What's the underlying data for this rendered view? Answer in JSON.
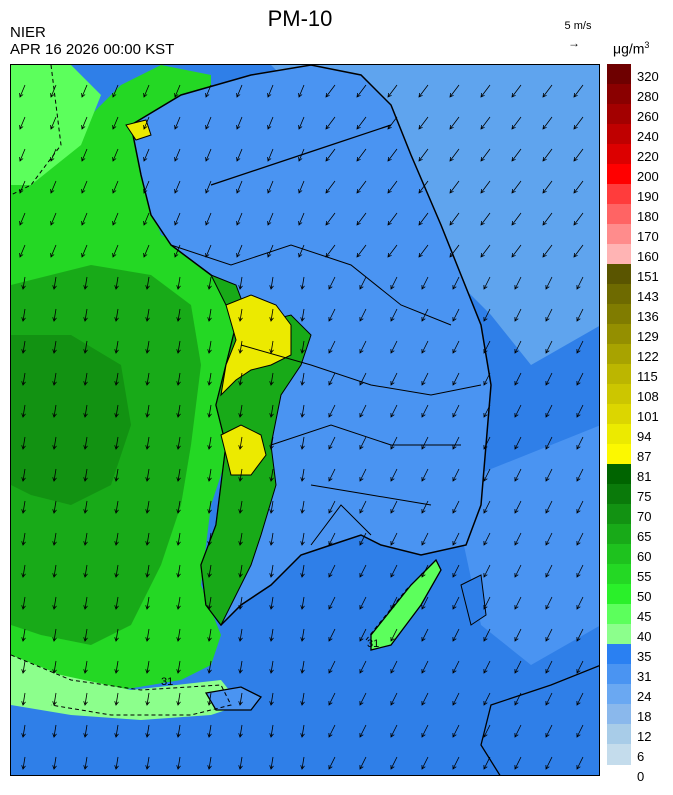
{
  "header": {
    "title": "PM-10",
    "organization": "NIER",
    "timestamp": "APR 16 2026 00:00 KST",
    "wind_reference": "5 m/s",
    "unit_base": "μg/m",
    "unit_exp": "3"
  },
  "map": {
    "contour_labels": [
      "31",
      "31"
    ]
  },
  "legend": {
    "labels": [
      "320",
      "280",
      "260",
      "240",
      "220",
      "200",
      "190",
      "180",
      "170",
      "160",
      "151",
      "143",
      "136",
      "129",
      "122",
      "115",
      "108",
      "101",
      "94",
      "87",
      "81",
      "75",
      "70",
      "65",
      "60",
      "55",
      "50",
      "45",
      "40",
      "35",
      "31",
      "24",
      "18",
      "12",
      "6",
      "0"
    ],
    "colors": [
      "#6e0000",
      "#8a0000",
      "#a30000",
      "#bf0000",
      "#dc0000",
      "#ff0000",
      "#ff3c3c",
      "#ff6464",
      "#ff8c8c",
      "#ffb4b4",
      "#5a5500",
      "#6e6a00",
      "#807c00",
      "#948f00",
      "#a8a300",
      "#bcb600",
      "#ccc600",
      "#dcd600",
      "#ecea00",
      "#fcf800",
      "#006400",
      "#0a7a0a",
      "#129212",
      "#18aa18",
      "#1ec21e",
      "#24d824",
      "#2af02a",
      "#5cff5c",
      "#8cff8c",
      "#2a80f2",
      "#4a94f2",
      "#6aa8f2",
      "#8ab8ec",
      "#a8cce8",
      "#c4dcec"
    ]
  }
}
